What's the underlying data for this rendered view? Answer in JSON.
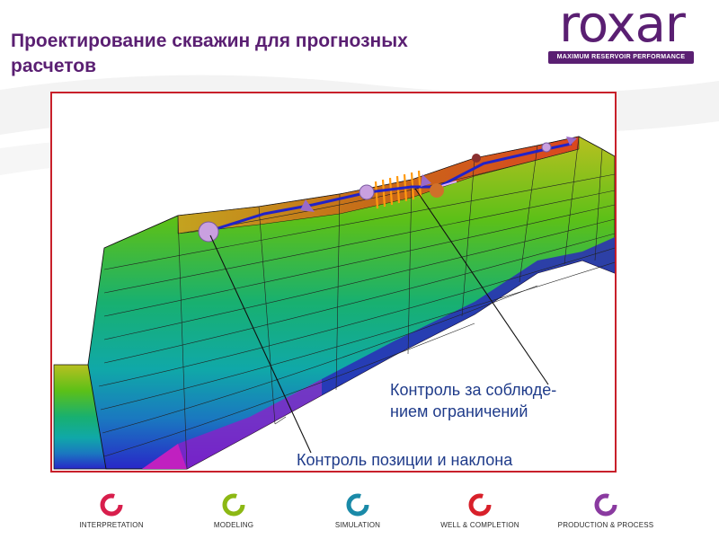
{
  "slide": {
    "title": "Проектирование скважин для прогнозных расчетов"
  },
  "logo": {
    "word": "roxar",
    "tagline": "MAXIMUM RESERVOIR PERFORMANCE",
    "color": "#5a1f72"
  },
  "figure": {
    "border_color": "#c8202a",
    "callouts": {
      "constraint": [
        "Контроль за соблюде-",
        "нием ограничений"
      ],
      "position": "Контроль позиции и наклона"
    },
    "colors": {
      "well_path": "#2222c8",
      "sphere": "#c9a0e0",
      "callout_text": "#1f3b8a"
    }
  },
  "nav": {
    "items": [
      {
        "label": "INTERPRETATION",
        "color": "#d81e4c",
        "icon": "interpretation-cycle-icon"
      },
      {
        "label": "MODELING",
        "color": "#8cb814",
        "icon": "modeling-cycle-icon"
      },
      {
        "label": "SIMULATION",
        "color": "#1a8aa8",
        "icon": "simulation-cycle-icon"
      },
      {
        "label": "WELL & COMPLETION",
        "color": "#d8202a",
        "icon": "well-completion-cycle-icon"
      },
      {
        "label": "PRODUCTION & PROCESS",
        "color": "#8a3aa0",
        "icon": "production-process-cycle-icon"
      }
    ]
  }
}
